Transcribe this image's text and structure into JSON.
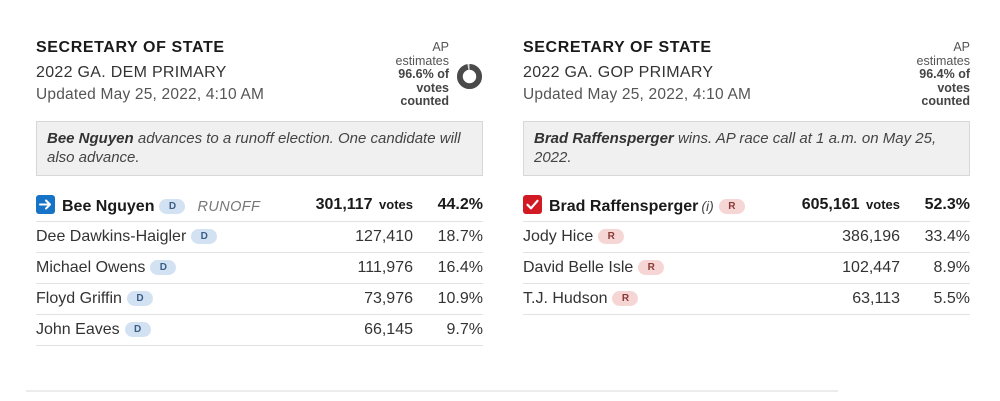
{
  "dem": {
    "office": "SECRETARY OF STATE",
    "race": "2022 GA. DEM PRIMARY",
    "updated": "Updated May 25, 2022, 4:10 AM",
    "estimate": {
      "line1": "AP",
      "line2": "estimates",
      "pct": "96.6% of",
      "line4": "votes",
      "line5": "counted",
      "fraction": 0.966
    },
    "summary": {
      "name": "Bee Nguyen",
      "text": " advances to a runoff election. One candidate will also advance."
    },
    "candidates": [
      {
        "name": "Bee Nguyen",
        "party": "D",
        "status": "RUNOFF",
        "votes": "301,117",
        "votes_label": "votes",
        "pct": "44.2%"
      },
      {
        "name": "Dee Dawkins-Haigler",
        "party": "D",
        "votes": "127,410",
        "pct": "18.7%"
      },
      {
        "name": "Michael Owens",
        "party": "D",
        "votes": "111,976",
        "pct": "16.4%"
      },
      {
        "name": "Floyd Griffin",
        "party": "D",
        "votes": "73,976",
        "pct": "10.9%"
      },
      {
        "name": "John Eaves",
        "party": "D",
        "votes": "66,145",
        "pct": "9.7%"
      }
    ]
  },
  "gop": {
    "office": "SECRETARY OF STATE",
    "race": "2022 GA. GOP PRIMARY",
    "updated": "Updated May 25, 2022, 4:10 AM",
    "estimate": {
      "line1": "AP",
      "line2": "estimates",
      "pct": "96.4% of",
      "line4": "votes",
      "line5": "counted"
    },
    "summary": {
      "name": "Brad Raffensperger",
      "text": " wins. AP race call at 1 a.m. on May 25, 2022."
    },
    "candidates": [
      {
        "name": "Brad Raffensperger",
        "incumbent": "(i)",
        "party": "R",
        "votes": "605,161",
        "votes_label": "votes",
        "pct": "52.3%"
      },
      {
        "name": "Jody Hice",
        "party": "R",
        "votes": "386,196",
        "pct": "33.4%"
      },
      {
        "name": "David Belle Isle",
        "party": "R",
        "votes": "102,447",
        "pct": "8.9%"
      },
      {
        "name": "T.J. Hudson",
        "party": "R",
        "votes": "63,113",
        "pct": "5.5%"
      }
    ]
  },
  "colors": {
    "runoff_icon": "#1673c6",
    "winner_icon": "#d11a24",
    "dem_badge": "#d3e2f3",
    "rep_badge": "#f6d6d5",
    "donut": "#4a4a4a"
  },
  "icons": {
    "runoff": "arrow-right-icon",
    "winner": "checkmark-icon",
    "estimate": "donut-progress-icon"
  }
}
